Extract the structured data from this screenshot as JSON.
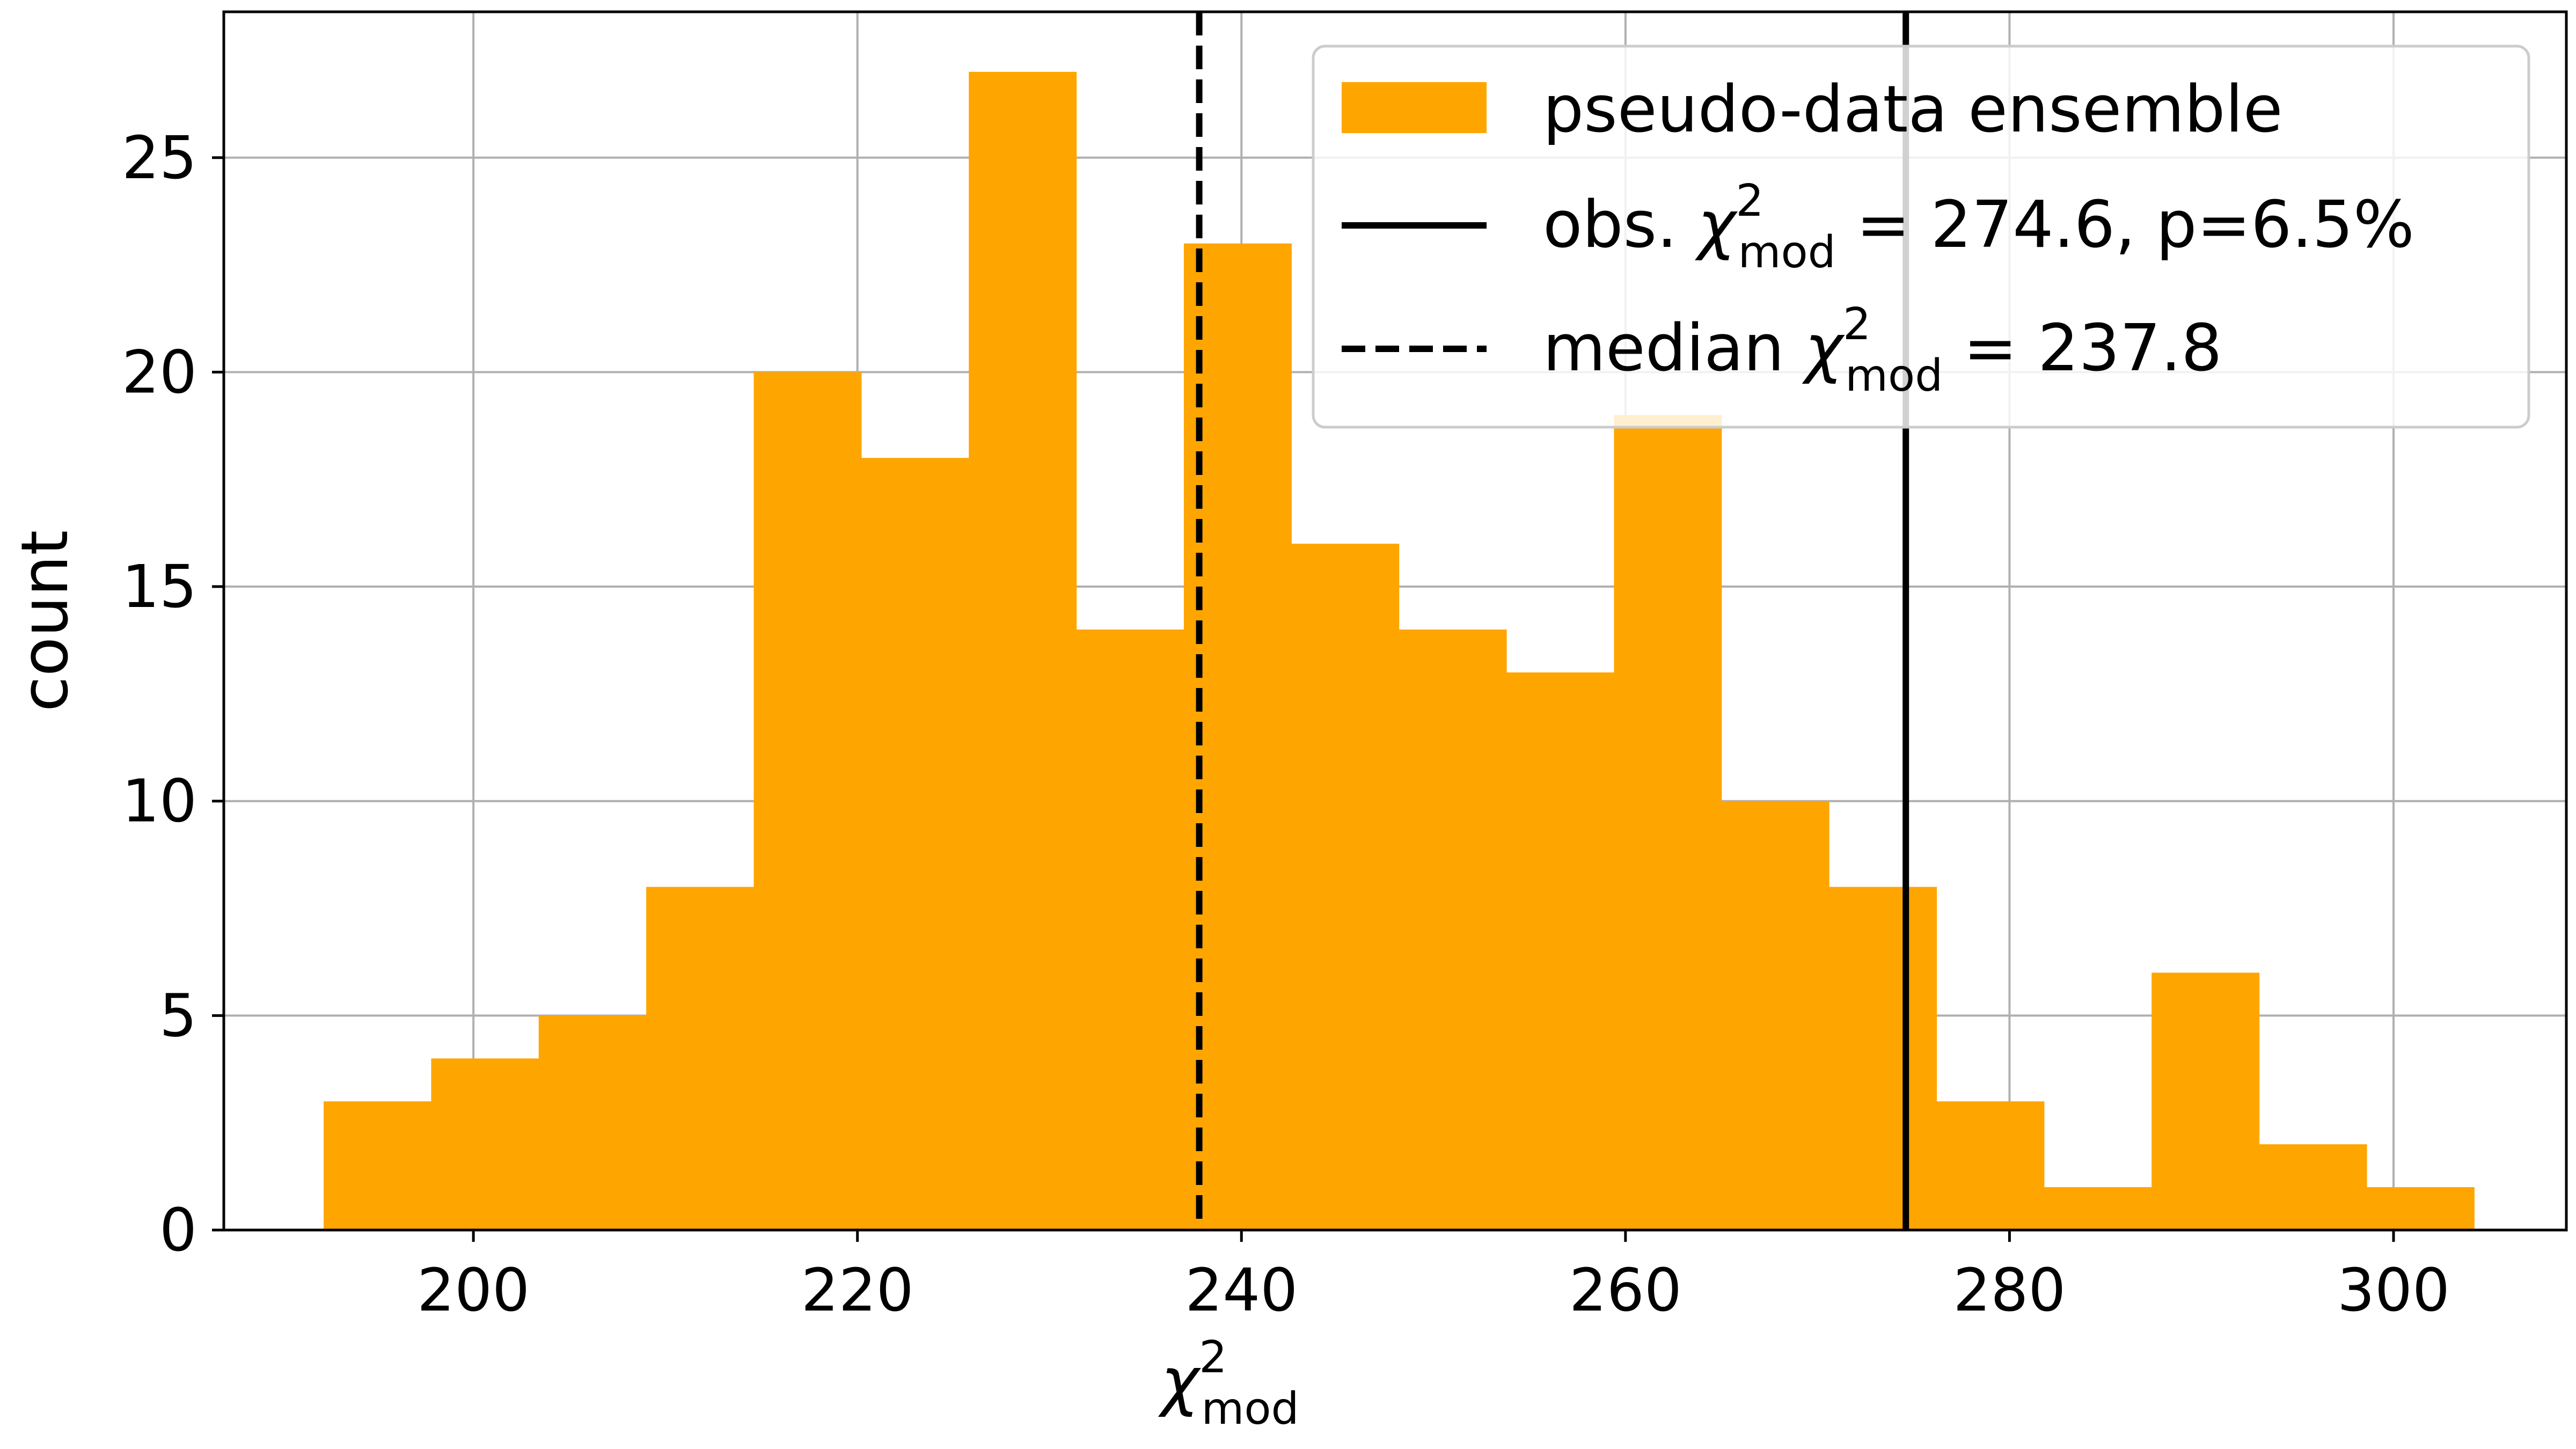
{
  "chart_data": {
    "type": "bar",
    "subtype": "histogram",
    "title": "",
    "xlabel": {
      "symbol": "χ",
      "sup": "2",
      "sub": "mod"
    },
    "ylabel": "count",
    "xlim": [
      187,
      309
    ],
    "ylim": [
      0,
      28.4
    ],
    "xticks": [
      "200",
      "220",
      "240",
      "260",
      "280",
      "300"
    ],
    "yticks": [
      "0",
      "5",
      "10",
      "15",
      "20",
      "25"
    ],
    "grid": true,
    "legend_position": "top-right",
    "bin_edges": [
      192.2,
      197.8,
      203.4,
      209.0,
      214.6,
      220.2,
      225.8,
      231.4,
      237.0,
      242.6,
      248.2,
      253.8,
      259.4,
      265.0,
      270.6,
      276.2,
      281.8,
      287.4,
      293.0,
      298.6,
      304.2
    ],
    "counts": [
      3,
      4,
      5,
      8,
      20,
      18,
      27,
      14,
      23,
      16,
      14,
      13,
      19,
      10,
      8,
      3,
      1,
      6,
      2,
      1
    ],
    "vlines": [
      {
        "x": 274.6,
        "style": "solid"
      },
      {
        "x": 237.8,
        "style": "dashed"
      }
    ],
    "legend": [
      {
        "kind": "patch",
        "label": "pseudo-data ensemble"
      },
      {
        "kind": "solid",
        "prefix": "obs. ",
        "symbol": "χ",
        "sup": "2",
        "sub": "mod",
        "suffix": " = 274.6, p=6.5%"
      },
      {
        "kind": "dashed",
        "prefix": "median ",
        "symbol": "χ",
        "sup": "2",
        "sub": "mod",
        "suffix": " = 237.8"
      }
    ],
    "colors": {
      "bars": "#ffa500",
      "lines": "#000000",
      "grid": "#b0b0b0"
    }
  }
}
